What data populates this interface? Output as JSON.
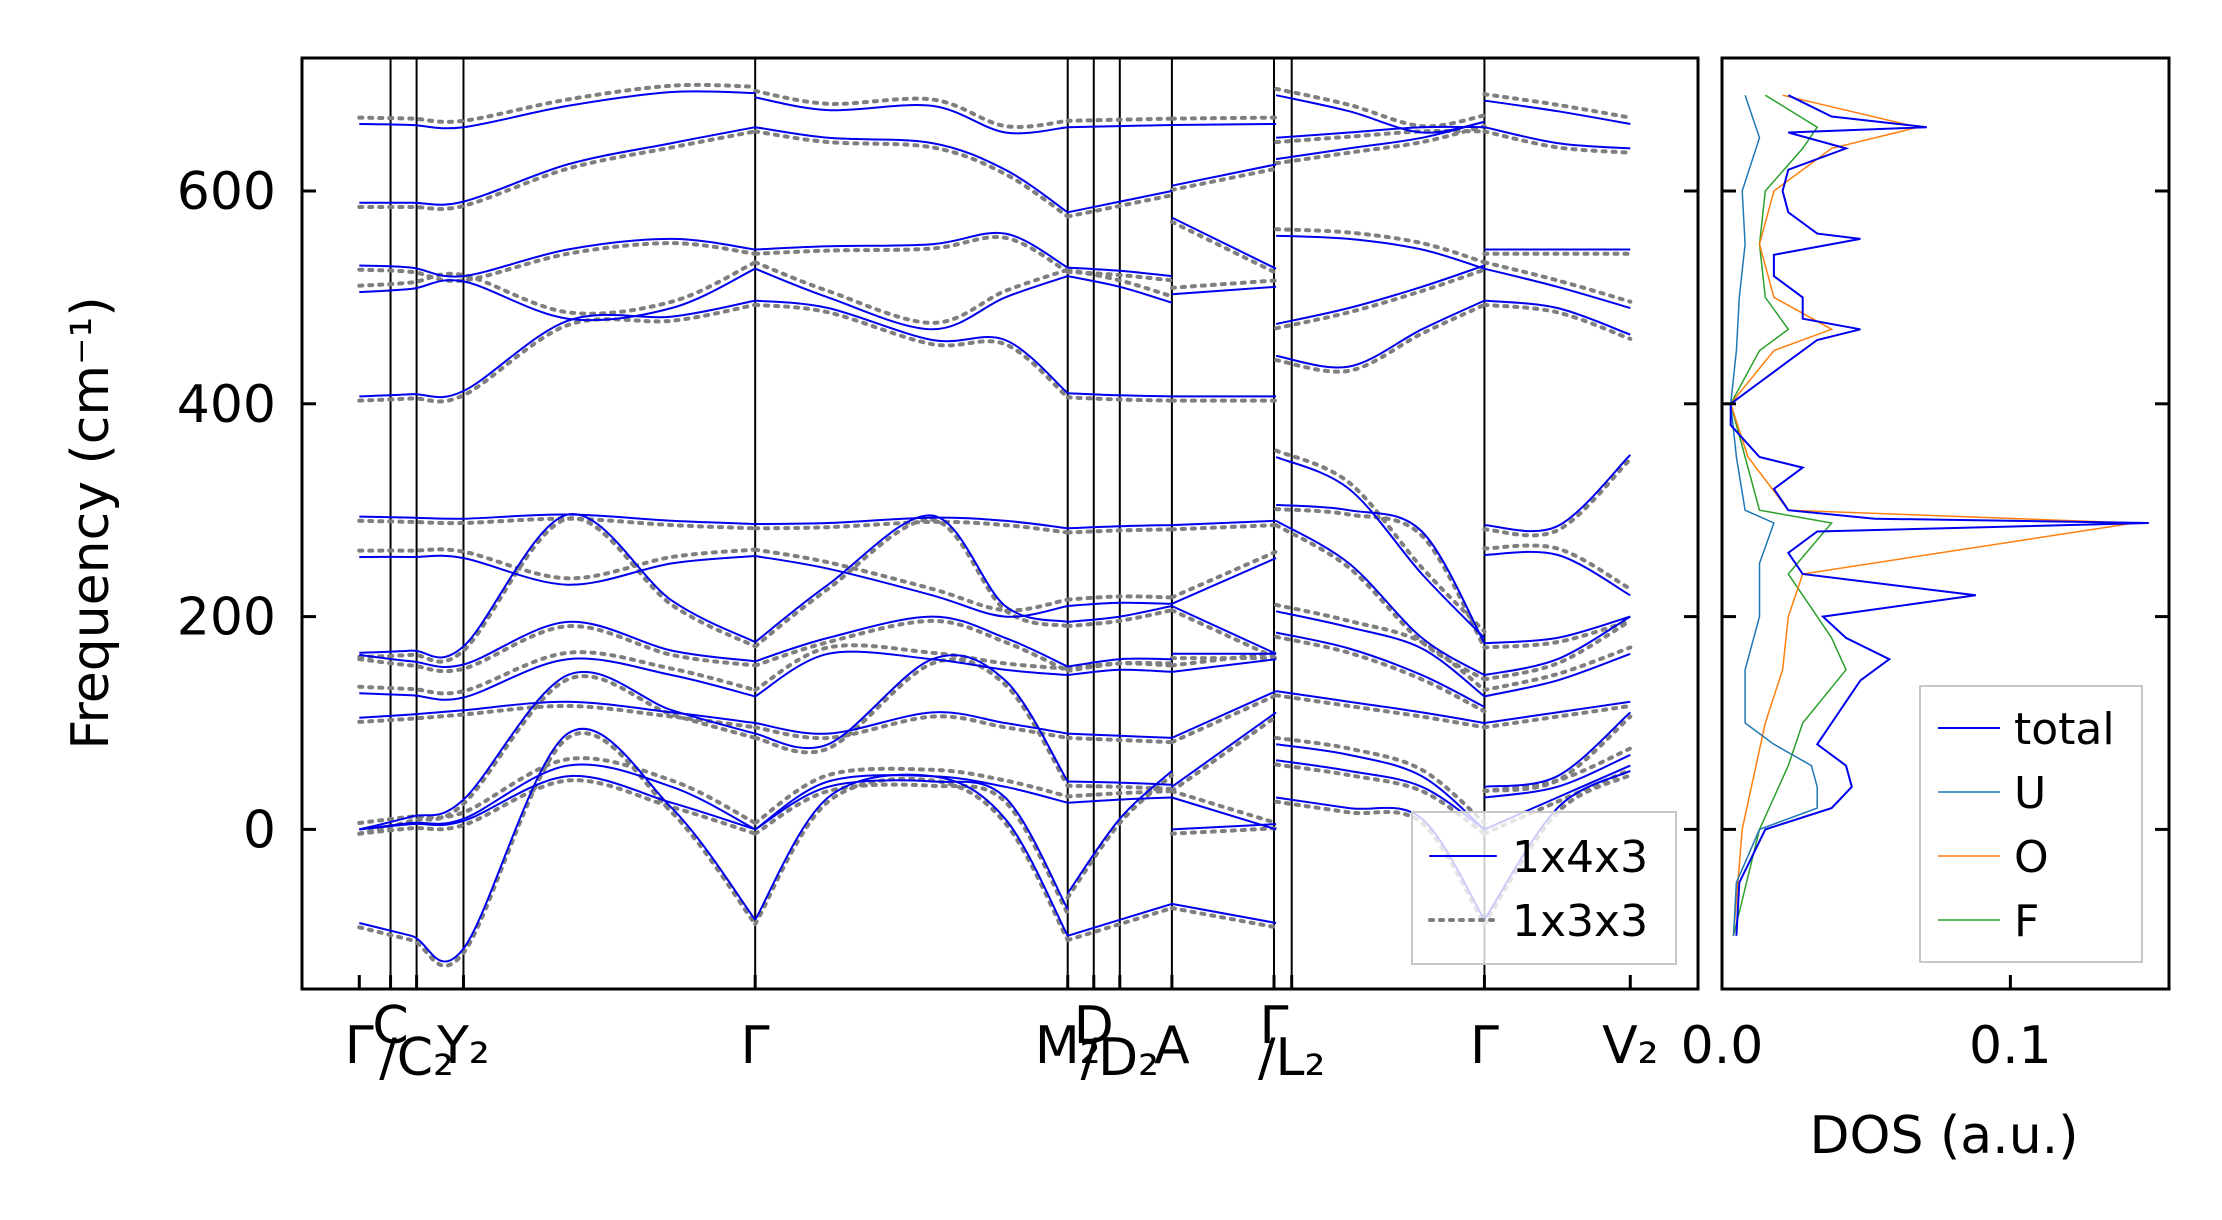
{
  "chart_data": [
    {
      "panel": "band-structure",
      "type": "line",
      "ylabel": "Frequency (cm⁻¹)",
      "ylim": [
        -150,
        725
      ],
      "yticks": [
        0,
        200,
        400,
        600
      ],
      "xticks": [
        {
          "label": "Γ",
          "pos": 0.0
        },
        {
          "label": "C",
          "pos": 0.3,
          "super": true
        },
        {
          "label": "/C₂",
          "pos": 0.55,
          "sub": true
        },
        {
          "label": "Y₂",
          "pos": 1.0
        },
        {
          "label": "Γ",
          "pos": 3.8
        },
        {
          "label": "M₂",
          "pos": 6.8
        },
        {
          "label": "D",
          "pos": 7.05,
          "super": true
        },
        {
          "label": "/D₂",
          "pos": 7.3,
          "sub": true
        },
        {
          "label": "A",
          "pos": 7.8
        },
        {
          "label": "Γ",
          "pos": 8.78,
          "super": true
        },
        {
          "label": "/L₂",
          "pos": 8.95,
          "sub": true
        },
        {
          "label": "Γ",
          "pos": 10.8
        },
        {
          "label": "V₂",
          "pos": 12.2
        }
      ],
      "series_styles": [
        {
          "name": "1x4x3",
          "color": "#0000ee",
          "dash": "solid"
        },
        {
          "name": "1x3x3",
          "color": "#7f7f7f",
          "dash": "dotted"
        }
      ],
      "legend": {
        "placement": "lower-right",
        "entries": [
          "1x4x3",
          "1x3x3"
        ]
      },
      "segments": [
        {
          "x": [
            0.0,
            0.5,
            1.0,
            2.0,
            3.0,
            3.8
          ],
          "bands": [
            [
              663,
              662,
              660,
              680,
              693,
              692
            ],
            [
              589,
              589,
              590,
              625,
              645,
              660
            ],
            [
              530,
              528,
              520,
              545,
              555,
              545
            ],
            [
              505,
              508,
              515,
              480,
              490,
              527
            ],
            [
              407,
              409,
              412,
              478,
              482,
              497
            ],
            [
              294,
              293,
              292,
              296,
              290,
              287
            ],
            [
              256,
              256,
              255,
              230,
              250,
              257
            ],
            [
              166,
              168,
              172,
              296,
              215,
              176
            ],
            [
              164,
              158,
              155,
              195,
              168,
              158
            ],
            [
              128,
              126,
              124,
              160,
              145,
              125
            ],
            [
              105,
              108,
              112,
              120,
              110,
              100
            ],
            [
              0,
              12,
              28,
              145,
              112,
              90
            ],
            [
              0,
              6,
              10,
              60,
              40,
              0
            ],
            [
              0,
              5,
              8,
              50,
              25,
              0
            ],
            [
              -88,
              -100,
              -112,
              90,
              20,
              -85
            ]
          ]
        },
        {
          "x": [
            3.8,
            4.5,
            5.5,
            6.2,
            6.8
          ],
          "bands": [
            [
              688,
              676,
              680,
              655,
              660
            ],
            [
              660,
              650,
              645,
              620,
              580
            ],
            [
              545,
              548,
              550,
              560,
              528
            ],
            [
              527,
              500,
              470,
              500,
              520
            ],
            [
              497,
              490,
              460,
              460,
              410
            ],
            [
              287,
              288,
              293,
              290,
              283
            ],
            [
              257,
              245,
              220,
              200,
              210
            ],
            [
              176,
              230,
              295,
              210,
              195
            ],
            [
              158,
              180,
              200,
              180,
              153
            ],
            [
              125,
              165,
              160,
              150,
              145
            ],
            [
              100,
              90,
              110,
              100,
              90
            ],
            [
              90,
              80,
              160,
              140,
              45
            ],
            [
              0,
              45,
              50,
              40,
              25
            ],
            [
              0,
              40,
              45,
              30,
              -75
            ],
            [
              -85,
              30,
              50,
              10,
              -100
            ]
          ]
        },
        {
          "x": [
            6.8,
            7.3,
            7.8
          ],
          "bands": [
            [
              660,
              661,
              662
            ],
            [
              580,
              590,
              600
            ],
            [
              528,
              525,
              520
            ],
            [
              520,
              510,
              495
            ],
            [
              410,
              408,
              407
            ],
            [
              283,
              285,
              286
            ],
            [
              210,
              213,
              212
            ],
            [
              195,
              200,
              210
            ],
            [
              153,
              160,
              160
            ],
            [
              145,
              150,
              148
            ],
            [
              90,
              88,
              86
            ],
            [
              45,
              44,
              42
            ],
            [
              25,
              28,
              30
            ],
            [
              -60,
              10,
              55
            ],
            [
              -100,
              -85,
              -70
            ]
          ]
        },
        {
          "x": [
            7.8,
            8.8
          ],
          "bands": [
            [
              662,
              663
            ],
            [
              605,
              625
            ],
            [
              575,
              527
            ],
            [
              503,
              510
            ],
            [
              407,
              407
            ],
            [
              286,
              290
            ],
            [
              212,
              255
            ],
            [
              210,
              165
            ],
            [
              165,
              165
            ],
            [
              148,
              160
            ],
            [
              86,
              130
            ],
            [
              40,
              110
            ],
            [
              30,
              0
            ],
            [
              0,
              5
            ],
            [
              -70,
              -88
            ]
          ]
        },
        {
          "x": [
            8.8,
            9.5,
            10.2,
            10.8
          ],
          "bands": [
            [
              690,
              675,
              655,
              665
            ],
            [
              650,
              655,
              660,
              660
            ],
            [
              630,
              640,
              650,
              665
            ],
            [
              558,
              555,
              545,
              527
            ],
            [
              475,
              490,
              510,
              530
            ],
            [
              445,
              435,
              470,
              497
            ],
            [
              350,
              320,
              240,
              180
            ],
            [
              305,
              300,
              280,
              175
            ],
            [
              290,
              250,
              180,
              145
            ],
            [
              205,
              190,
              170,
              125
            ],
            [
              185,
              170,
              145,
              115
            ],
            [
              130,
              120,
              110,
              100
            ],
            [
              80,
              70,
              50,
              0
            ],
            [
              65,
              55,
              40,
              0
            ],
            [
              30,
              20,
              10,
              -85
            ]
          ]
        },
        {
          "x": [
            10.8,
            11.5,
            12.2
          ],
          "bands": [
            [
              685,
              675,
              663
            ],
            [
              660,
              645,
              640
            ],
            [
              545,
              545,
              545
            ],
            [
              527,
              510,
              490
            ],
            [
              497,
              490,
              465
            ],
            [
              286,
              285,
              352
            ],
            [
              258,
              258,
              220
            ],
            [
              175,
              180,
              200
            ],
            [
              145,
              160,
              200
            ],
            [
              125,
              140,
              165
            ],
            [
              100,
              110,
              120
            ],
            [
              40,
              50,
              110
            ],
            [
              30,
              40,
              70
            ],
            [
              0,
              30,
              60
            ],
            [
              -85,
              20,
              55
            ]
          ]
        }
      ]
    },
    {
      "panel": "dos",
      "type": "line",
      "xlabel": "DOS (a.u.)",
      "xlim": [
        0.0,
        0.155
      ],
      "xticks": [
        {
          "label": "0.0",
          "value": 0.0
        },
        {
          "label": "0.1",
          "value": 0.1
        }
      ],
      "ylim": [
        -150,
        725
      ],
      "legend": {
        "placement": "lower-right",
        "entries": [
          "total",
          "U",
          "O",
          "F"
        ]
      },
      "series": [
        {
          "name": "total",
          "color": "#0000ee",
          "freq": [
            -100,
            -50,
            0,
            20,
            40,
            60,
            80,
            100,
            120,
            140,
            160,
            180,
            200,
            220,
            240,
            260,
            280,
            288,
            292,
            300,
            320,
            340,
            350,
            380,
            400,
            420,
            440,
            460,
            470,
            480,
            500,
            520,
            540,
            555,
            560,
            580,
            600,
            620,
            640,
            655,
            660,
            670,
            690
          ],
          "values": [
            0.002,
            0.003,
            0.012,
            0.035,
            0.042,
            0.04,
            0.03,
            0.035,
            0.04,
            0.045,
            0.055,
            0.04,
            0.032,
            0.085,
            0.025,
            0.02,
            0.03,
            0.145,
            0.05,
            0.02,
            0.015,
            0.025,
            0.01,
            0.0,
            0.0,
            0.01,
            0.02,
            0.03,
            0.045,
            0.025,
            0.025,
            0.015,
            0.015,
            0.045,
            0.03,
            0.02,
            0.018,
            0.02,
            0.04,
            0.02,
            0.068,
            0.035,
            0.02
          ]
        },
        {
          "name": "U",
          "color": "#1f77b4",
          "freq": [
            -100,
            -50,
            0,
            20,
            40,
            60,
            80,
            100,
            150,
            200,
            250,
            288,
            300,
            350,
            400,
            450,
            500,
            550,
            600,
            650,
            690
          ],
          "values": [
            0.001,
            0.002,
            0.01,
            0.03,
            0.03,
            0.028,
            0.015,
            0.005,
            0.005,
            0.01,
            0.01,
            0.015,
            0.005,
            0.002,
            0.0,
            0.002,
            0.003,
            0.005,
            0.004,
            0.01,
            0.005
          ]
        },
        {
          "name": "O",
          "color": "#ff7f0e",
          "freq": [
            -100,
            0,
            50,
            100,
            150,
            200,
            240,
            288,
            300,
            350,
            400,
            450,
            470,
            500,
            550,
            600,
            640,
            660,
            690
          ],
          "values": [
            0.001,
            0.004,
            0.008,
            0.012,
            0.018,
            0.02,
            0.025,
            0.14,
            0.02,
            0.006,
            0.0,
            0.015,
            0.035,
            0.015,
            0.01,
            0.015,
            0.035,
            0.065,
            0.018
          ]
        },
        {
          "name": "F",
          "color": "#2ca02c",
          "freq": [
            -100,
            0,
            30,
            60,
            100,
            150,
            180,
            200,
            240,
            288,
            300,
            350,
            400,
            450,
            470,
            500,
            550,
            600,
            640,
            660,
            690
          ],
          "values": [
            0.001,
            0.01,
            0.015,
            0.02,
            0.025,
            0.04,
            0.035,
            0.03,
            0.02,
            0.035,
            0.01,
            0.005,
            0.0,
            0.01,
            0.02,
            0.012,
            0.01,
            0.012,
            0.025,
            0.03,
            0.012
          ]
        }
      ]
    }
  ]
}
